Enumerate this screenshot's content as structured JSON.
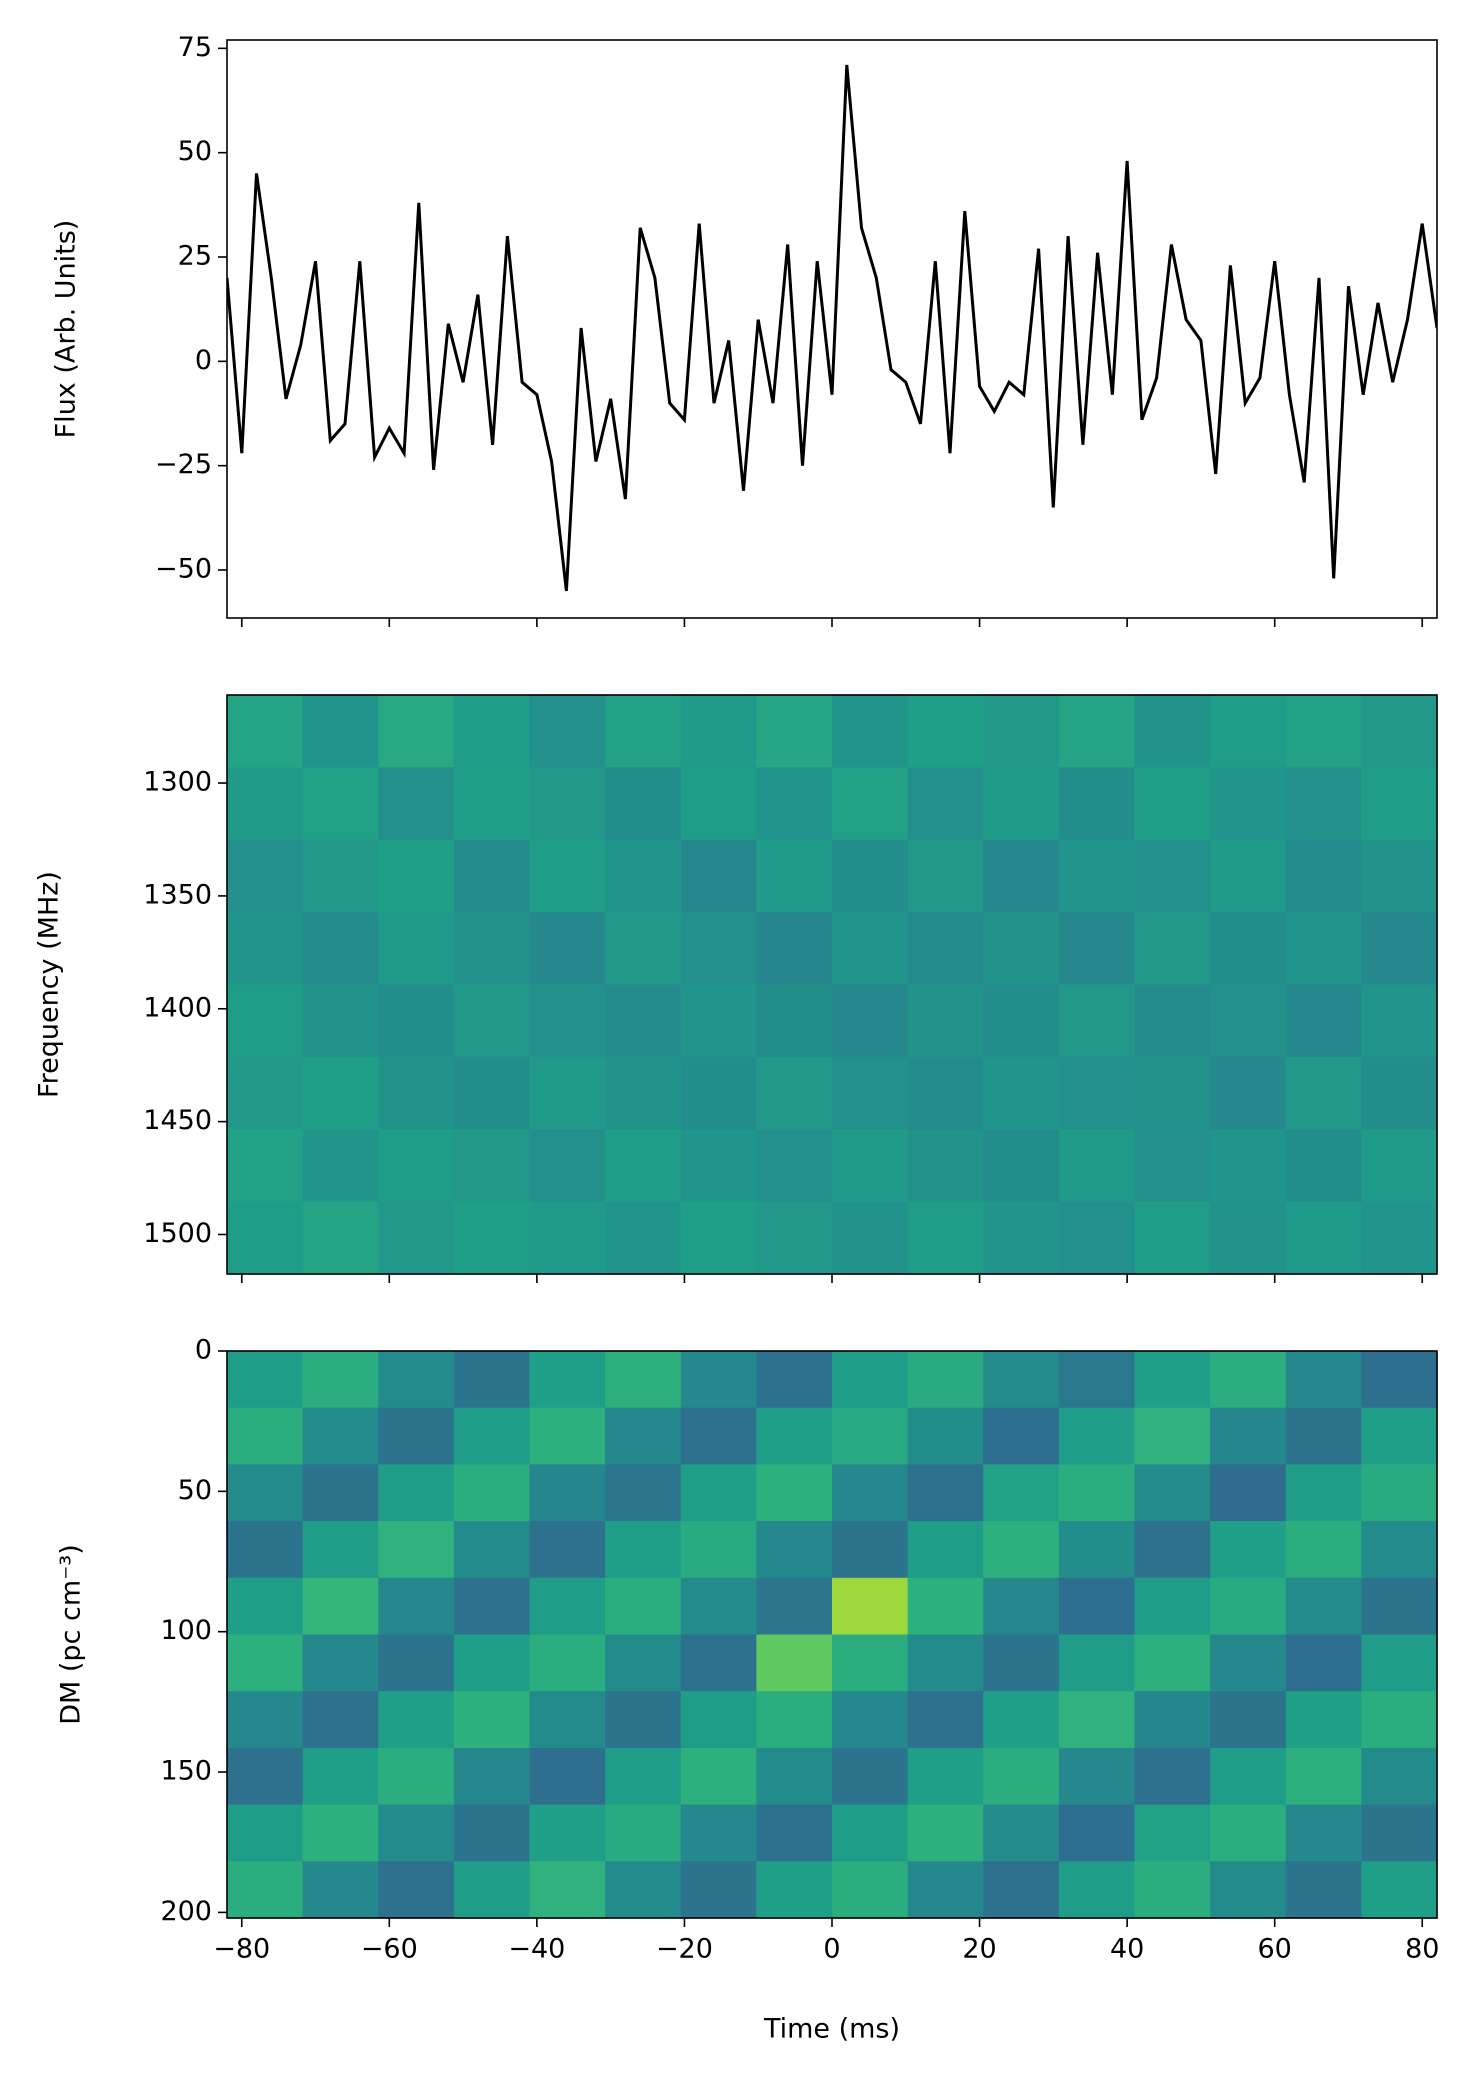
{
  "chart_data": [
    {
      "type": "line",
      "ylabel": "Flux (Arb. Units)",
      "color": "#000000",
      "x": [
        -82,
        -80,
        -78,
        -76,
        -74,
        -72,
        -70,
        -68,
        -66,
        -64,
        -62,
        -60,
        -58,
        -56,
        -54,
        -52,
        -50,
        -48,
        -46,
        -44,
        -42,
        -40,
        -38,
        -36,
        -34,
        -32,
        -30,
        -28,
        -26,
        -24,
        -22,
        -20,
        -18,
        -16,
        -14,
        -12,
        -10,
        -8,
        -6,
        -4,
        -2,
        0,
        2,
        4,
        6,
        8,
        10,
        12,
        14,
        16,
        18,
        20,
        22,
        24,
        26,
        28,
        30,
        32,
        34,
        36,
        38,
        40,
        42,
        44,
        46,
        48,
        50,
        52,
        54,
        56,
        58,
        60,
        62,
        64,
        66,
        68,
        70,
        72,
        74,
        76,
        78,
        80,
        82
      ],
      "values": [
        20,
        -22,
        45,
        20,
        -9,
        4,
        24,
        -19,
        -15,
        24,
        -23,
        -16,
        -22,
        38,
        -26,
        9,
        -5,
        16,
        -20,
        30,
        -5,
        -8,
        -24,
        -55,
        8,
        -24,
        -9,
        -33,
        32,
        20,
        -10,
        -14,
        33,
        -10,
        5,
        -31,
        10,
        -10,
        28,
        -25,
        24,
        -8,
        71,
        32,
        20,
        -2,
        -5,
        -15,
        24,
        -22,
        36,
        -6,
        -12,
        -5,
        -8,
        27,
        -35,
        30,
        -20,
        26,
        -8,
        48,
        -14,
        -4,
        28,
        10,
        5,
        -27,
        23,
        -10,
        -4,
        24,
        -8,
        -29,
        20,
        -52,
        18,
        -8,
        14,
        -5,
        10,
        33,
        8
      ],
      "xlim": [
        -82,
        82
      ],
      "xticks": [
        -80,
        -60,
        -40,
        -20,
        0,
        20,
        40,
        60,
        80
      ],
      "ylim": [
        -61.5,
        77
      ],
      "yticks": [
        {
          "value": -50,
          "label": "−50"
        },
        {
          "value": -25,
          "label": "−25"
        },
        0,
        25,
        50,
        75
      ]
    },
    {
      "type": "heatmap",
      "ylabel": "Frequency (MHz)",
      "colormap": "viridis",
      "xlim": [
        -82,
        82
      ],
      "xticks": [
        -80,
        -60,
        -40,
        -20,
        0,
        20,
        40,
        60,
        80
      ],
      "ylim": [
        1517.5,
        1261
      ],
      "yticks": [
        1300,
        1350,
        1400,
        1450,
        1500
      ],
      "z": [
        [
          0.58,
          0.52,
          0.6,
          0.55,
          0.5,
          0.57,
          0.54,
          0.59,
          0.52,
          0.56,
          0.53,
          0.58,
          0.51,
          0.55,
          0.57,
          0.53
        ],
        [
          0.54,
          0.57,
          0.5,
          0.56,
          0.53,
          0.49,
          0.55,
          0.52,
          0.57,
          0.5,
          0.54,
          0.49,
          0.56,
          0.52,
          0.5,
          0.55
        ],
        [
          0.5,
          0.53,
          0.56,
          0.48,
          0.55,
          0.52,
          0.47,
          0.54,
          0.49,
          0.53,
          0.47,
          0.52,
          0.5,
          0.54,
          0.48,
          0.51
        ],
        [
          0.52,
          0.48,
          0.54,
          0.51,
          0.47,
          0.53,
          0.5,
          0.46,
          0.52,
          0.48,
          0.51,
          0.47,
          0.53,
          0.49,
          0.52,
          0.47
        ],
        [
          0.55,
          0.51,
          0.49,
          0.53,
          0.5,
          0.48,
          0.52,
          0.49,
          0.47,
          0.51,
          0.49,
          0.53,
          0.48,
          0.5,
          0.47,
          0.52
        ],
        [
          0.53,
          0.56,
          0.51,
          0.49,
          0.54,
          0.51,
          0.49,
          0.53,
          0.5,
          0.48,
          0.52,
          0.5,
          0.51,
          0.47,
          0.53,
          0.49
        ],
        [
          0.57,
          0.52,
          0.55,
          0.53,
          0.5,
          0.55,
          0.52,
          0.5,
          0.54,
          0.51,
          0.49,
          0.54,
          0.5,
          0.52,
          0.49,
          0.54
        ],
        [
          0.55,
          0.58,
          0.53,
          0.56,
          0.54,
          0.52,
          0.56,
          0.53,
          0.51,
          0.55,
          0.52,
          0.5,
          0.55,
          0.51,
          0.54,
          0.52
        ]
      ]
    },
    {
      "type": "heatmap",
      "ylabel": "DM (pc cm⁻³)",
      "xlabel": "Time (ms)",
      "colormap": "viridis",
      "xlim": [
        -82,
        82
      ],
      "xticks": [
        {
          "value": -80,
          "label": "−80"
        },
        {
          "value": -60,
          "label": "−60"
        },
        {
          "value": -40,
          "label": "−40"
        },
        {
          "value": -20,
          "label": "−20"
        },
        0,
        20,
        40,
        60,
        80
      ],
      "ylim": [
        202,
        0
      ],
      "yticks": [
        0,
        50,
        100,
        150,
        200
      ],
      "z": [
        [
          0.55,
          0.62,
          0.48,
          0.38,
          0.56,
          0.63,
          0.47,
          0.37,
          0.55,
          0.61,
          0.48,
          0.4,
          0.56,
          0.62,
          0.47,
          0.36
        ],
        [
          0.62,
          0.48,
          0.38,
          0.55,
          0.63,
          0.47,
          0.37,
          0.56,
          0.6,
          0.49,
          0.36,
          0.55,
          0.64,
          0.46,
          0.38,
          0.56
        ],
        [
          0.48,
          0.38,
          0.55,
          0.62,
          0.46,
          0.39,
          0.56,
          0.63,
          0.47,
          0.37,
          0.57,
          0.62,
          0.48,
          0.35,
          0.55,
          0.61
        ],
        [
          0.38,
          0.55,
          0.64,
          0.48,
          0.37,
          0.56,
          0.61,
          0.47,
          0.38,
          0.55,
          0.63,
          0.49,
          0.37,
          0.56,
          0.62,
          0.48
        ],
        [
          0.56,
          0.66,
          0.47,
          0.37,
          0.55,
          0.62,
          0.48,
          0.39,
          0.85,
          0.63,
          0.47,
          0.36,
          0.55,
          0.61,
          0.48,
          0.38
        ],
        [
          0.63,
          0.47,
          0.38,
          0.56,
          0.62,
          0.48,
          0.37,
          0.75,
          0.62,
          0.48,
          0.38,
          0.55,
          0.63,
          0.47,
          0.36,
          0.55
        ],
        [
          0.47,
          0.37,
          0.56,
          0.63,
          0.48,
          0.38,
          0.55,
          0.62,
          0.47,
          0.37,
          0.56,
          0.64,
          0.46,
          0.38,
          0.56,
          0.62
        ],
        [
          0.37,
          0.56,
          0.62,
          0.47,
          0.36,
          0.55,
          0.63,
          0.48,
          0.38,
          0.56,
          0.62,
          0.47,
          0.37,
          0.55,
          0.63,
          0.48
        ],
        [
          0.55,
          0.63,
          0.48,
          0.38,
          0.56,
          0.61,
          0.47,
          0.37,
          0.55,
          0.63,
          0.48,
          0.36,
          0.57,
          0.62,
          0.47,
          0.38
        ],
        [
          0.62,
          0.47,
          0.37,
          0.55,
          0.64,
          0.48,
          0.38,
          0.56,
          0.62,
          0.47,
          0.37,
          0.55,
          0.62,
          0.48,
          0.38,
          0.56
        ]
      ]
    }
  ]
}
